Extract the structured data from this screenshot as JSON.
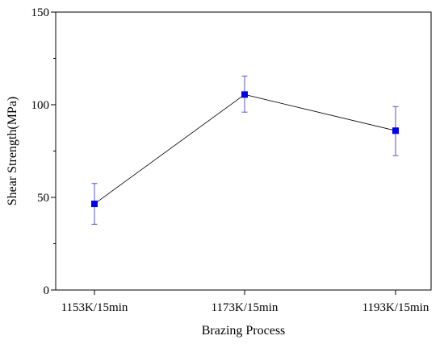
{
  "chart_data": {
    "type": "line",
    "title": "",
    "xlabel": "Brazing Process",
    "ylabel": "Shear Strength(MPa)",
    "categories": [
      "1153K/15min",
      "1173K/15min",
      "1193K/15min"
    ],
    "series": [
      {
        "values": [
          46.5,
          105.5,
          86
        ],
        "error_low": [
          35.5,
          96,
          72.5
        ],
        "error_high": [
          57.5,
          115.5,
          99
        ]
      }
    ],
    "ylim": [
      0,
      150
    ],
    "yticks": [
      "0",
      "50",
      "100",
      "150"
    ],
    "grid": false,
    "legend": "none",
    "colors": {
      "line": "#000000",
      "marker": "#0000ee",
      "error_bar": "#5555dd",
      "axis": "#000000"
    }
  }
}
